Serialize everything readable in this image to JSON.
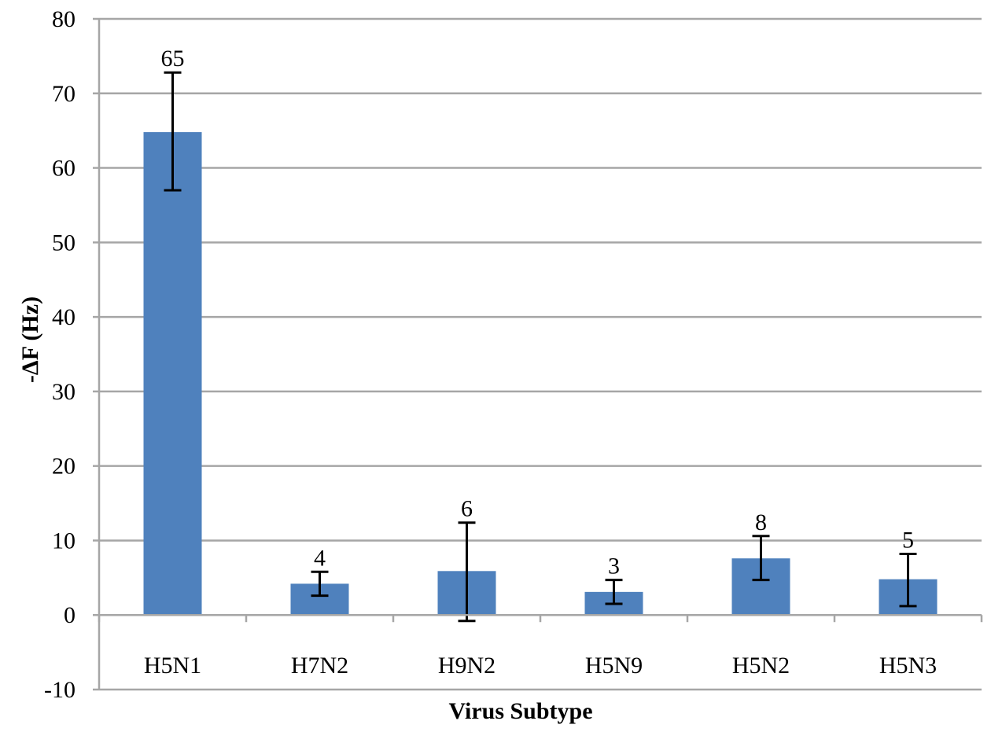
{
  "chart_data": {
    "type": "bar",
    "title": "",
    "xlabel": "Virus Subtype",
    "ylabel": "-ΔF (Hz)",
    "categories": [
      "H5N1",
      "H7N2",
      "H9N2",
      "H5N9",
      "H5N2",
      "H5N3"
    ],
    "values": [
      64.8,
      4.2,
      5.9,
      3.1,
      7.6,
      4.8
    ],
    "data_labels": [
      "65",
      "4",
      "6",
      "3",
      "8",
      "5"
    ],
    "error_bars": [
      {
        "low": 57.0,
        "high": 72.8
      },
      {
        "low": 2.6,
        "high": 5.8
      },
      {
        "low": -0.8,
        "high": 12.4
      },
      {
        "low": 1.5,
        "high": 4.7
      },
      {
        "low": 4.7,
        "high": 10.6
      },
      {
        "low": 1.2,
        "high": 8.2
      }
    ],
    "ylim": [
      -10,
      80
    ],
    "yticks": [
      -10,
      0,
      10,
      20,
      30,
      40,
      50,
      60,
      70,
      80
    ],
    "grid": true,
    "legend": "none",
    "bar_color": "#4F81BD",
    "grid_color": "#A6A6A6"
  }
}
